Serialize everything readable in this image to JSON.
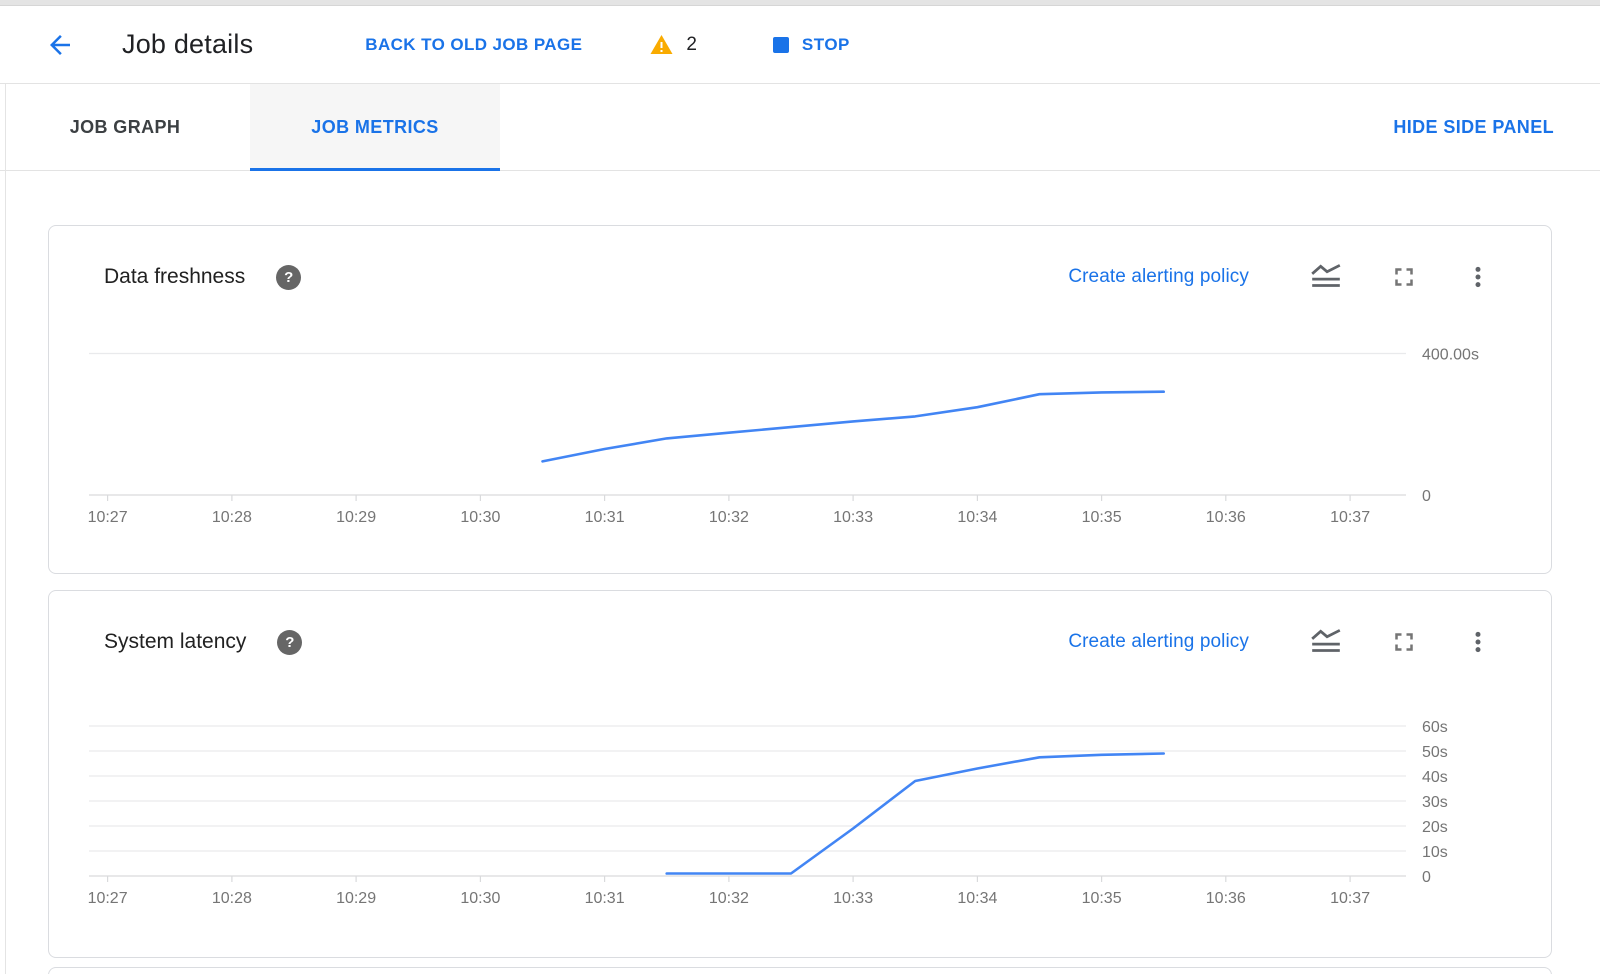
{
  "header": {
    "title": "Job details",
    "back_to_old_label": "BACK TO OLD JOB PAGE",
    "warning_count": "2",
    "stop_label": "STOP"
  },
  "tabs": {
    "items": [
      {
        "label": "JOB GRAPH",
        "active": false
      },
      {
        "label": "JOB METRICS",
        "active": true
      }
    ],
    "hide_side_panel_label": "HIDE SIDE PANEL"
  },
  "cards": [
    {
      "title": "Data freshness",
      "alert_link": "Create alerting policy"
    },
    {
      "title": "System latency",
      "alert_link": "Create alerting policy"
    }
  ],
  "icons": {
    "back": "arrow-left",
    "warning": "triangle-exclamation",
    "stop": "filled-square",
    "help": "question-mark-circle",
    "chart_style": "line-chart",
    "fullscreen": "fullscreen-corners",
    "more": "more-vert-dots"
  },
  "colors": {
    "accent_blue": "#1a73e8",
    "chart_line_blue": "#4285f4",
    "warning_amber": "#f9ab00",
    "axis_label_gray": "#757575",
    "gridline_gray": "#e9eaec",
    "card_border": "#dadce0"
  },
  "chart_data": [
    {
      "type": "line",
      "title": "Data freshness",
      "xlabel": "time",
      "ylabel": "seconds",
      "grid": "horizontal",
      "legend": "none",
      "x_range": [
        26.85,
        37.45
      ],
      "y_range": [
        0,
        455
      ],
      "x_ticks": [
        {
          "label": "10:27",
          "minute": 27
        },
        {
          "label": "10:28",
          "minute": 28
        },
        {
          "label": "10:29",
          "minute": 29
        },
        {
          "label": "10:30",
          "minute": 30
        },
        {
          "label": "10:31",
          "minute": 31
        },
        {
          "label": "10:32",
          "minute": 32
        },
        {
          "label": "10:33",
          "minute": 33
        },
        {
          "label": "10:34",
          "minute": 34
        },
        {
          "label": "10:35",
          "minute": 35
        },
        {
          "label": "10:36",
          "minute": 36
        },
        {
          "label": "10:37",
          "minute": 37
        }
      ],
      "y_gridlines": [
        {
          "value": 400,
          "label": "400.00s"
        },
        {
          "value": 0,
          "label": "0"
        }
      ],
      "series": [
        {
          "name": "Data freshness",
          "color": "#4285f4",
          "points": [
            [
              30.5,
              95
            ],
            [
              31.0,
              130
            ],
            [
              31.5,
              160
            ],
            [
              32.0,
              176
            ],
            [
              32.5,
              192
            ],
            [
              33.0,
              208
            ],
            [
              33.5,
              222
            ],
            [
              34.0,
              248
            ],
            [
              34.5,
              285
            ],
            [
              35.0,
              290
            ],
            [
              35.5,
              292
            ]
          ]
        }
      ]
    },
    {
      "type": "line",
      "title": "System latency",
      "xlabel": "time",
      "ylabel": "seconds",
      "grid": "horizontal",
      "legend": "none",
      "x_range": [
        26.85,
        37.45
      ],
      "y_range": [
        0,
        70
      ],
      "x_ticks": [
        {
          "label": "10:27",
          "minute": 27
        },
        {
          "label": "10:28",
          "minute": 28
        },
        {
          "label": "10:29",
          "minute": 29
        },
        {
          "label": "10:30",
          "minute": 30
        },
        {
          "label": "10:31",
          "minute": 31
        },
        {
          "label": "10:32",
          "minute": 32
        },
        {
          "label": "10:33",
          "minute": 33
        },
        {
          "label": "10:34",
          "minute": 34
        },
        {
          "label": "10:35",
          "minute": 35
        },
        {
          "label": "10:36",
          "minute": 36
        },
        {
          "label": "10:37",
          "minute": 37
        }
      ],
      "y_gridlines": [
        {
          "value": 60,
          "label": "60s"
        },
        {
          "value": 50,
          "label": "50s"
        },
        {
          "value": 40,
          "label": "40s"
        },
        {
          "value": 30,
          "label": "30s"
        },
        {
          "value": 20,
          "label": "20s"
        },
        {
          "value": 10,
          "label": "10s"
        },
        {
          "value": 0,
          "label": "0"
        }
      ],
      "series": [
        {
          "name": "System latency",
          "color": "#4285f4",
          "points": [
            [
              31.5,
              1
            ],
            [
              32.0,
              1
            ],
            [
              32.5,
              1
            ],
            [
              33.0,
              19
            ],
            [
              33.5,
              38
            ],
            [
              34.0,
              43
            ],
            [
              34.5,
              47.5
            ],
            [
              35.0,
              48.5
            ],
            [
              35.5,
              49
            ]
          ]
        }
      ]
    }
  ]
}
